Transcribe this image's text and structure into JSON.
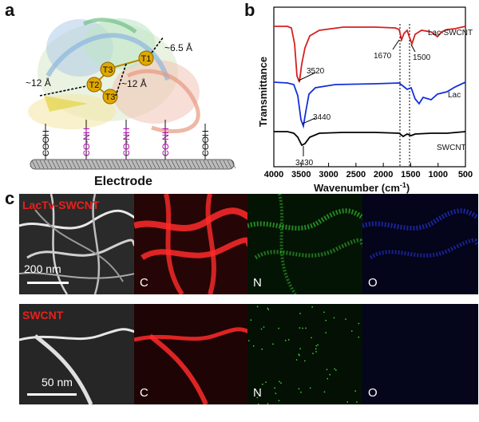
{
  "panel_a": {
    "letter": "a",
    "electrode_label": "Electrode",
    "sites": [
      "T1",
      "T2",
      "T3",
      "T3"
    ],
    "distances": [
      "~6.5 Å",
      "~12 Å",
      "~12 Å"
    ],
    "linkers": [
      "COOH",
      "CO-NH",
      "CO-NH",
      "CO-NH",
      "COOH"
    ]
  },
  "panel_b": {
    "letter": "b",
    "ylabel": "Transmittance",
    "xlabel": "Wavenumber (cm",
    "xlabel_sup": "-1",
    "xlabel_end": ")",
    "ticks": [
      "4000",
      "3500",
      "3000",
      "2500",
      "2000",
      "1500",
      "1000",
      "500"
    ],
    "series_labels": [
      "Lac-SWCNT",
      "Lac",
      "SWCNT"
    ],
    "peak_labels": [
      "3520",
      "3440",
      "3430",
      "1670",
      "1500"
    ],
    "colors": {
      "lac_swcnt": "#d62020",
      "lac": "#1530d8",
      "swcnt": "#000000"
    }
  },
  "chart_data": {
    "type": "line",
    "xlabel": "Wavenumber (cm-1)",
    "ylabel": "Transmittance",
    "xlim": [
      4000,
      500
    ],
    "reference_lines": [
      1670,
      1500
    ],
    "series": [
      {
        "name": "Lac-SWCNT",
        "peak_positions": [
          3520,
          1670,
          1500
        ]
      },
      {
        "name": "Lac",
        "peak_positions": [
          3440
        ]
      },
      {
        "name": "SWCNT",
        "peak_positions": [
          3430
        ]
      }
    ]
  },
  "panel_c": {
    "letter": "c",
    "rows": [
      {
        "sample": "LacTv-SWCNT",
        "scale": "200 nm",
        "channels": [
          "C",
          "N",
          "O"
        ]
      },
      {
        "sample": "SWCNT",
        "scale": "50 nm",
        "channels": [
          "C",
          "N",
          "O"
        ]
      }
    ],
    "channel_colors": {
      "C": "#ff2020",
      "N": "#30d030",
      "O": "#2040ff"
    }
  }
}
